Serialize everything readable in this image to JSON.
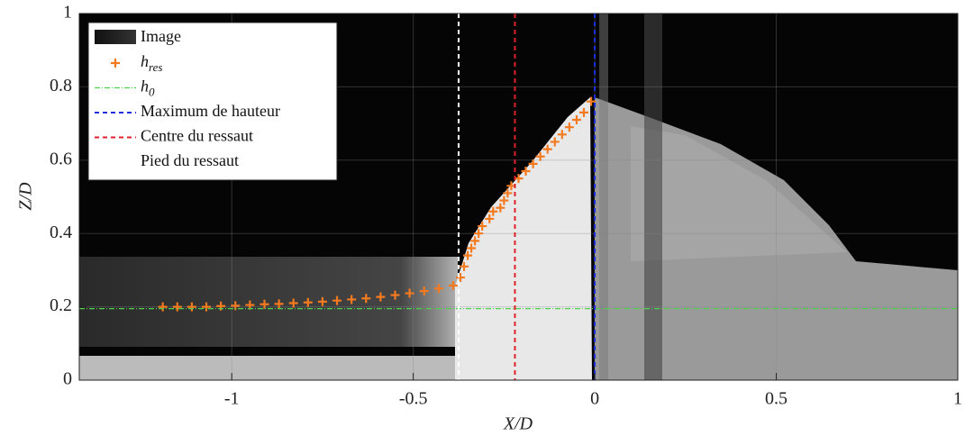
{
  "chart_data": {
    "type": "scatter",
    "xlabel": "X/D",
    "ylabel": "Z/D",
    "xlim": [
      -1.42,
      1
    ],
    "ylim": [
      0,
      1
    ],
    "xticks": [
      -1,
      -0.5,
      0,
      0.5,
      1
    ],
    "yticks": [
      0,
      0.2,
      0.4,
      0.6,
      0.8,
      1
    ],
    "grid": true,
    "legend": "upper left",
    "image_legend": "Image",
    "series": [
      {
        "name": "h",
        "subscript": "res",
        "kind": "points",
        "color": "#f47a20",
        "x": [
          -1.19,
          -1.15,
          -1.11,
          -1.07,
          -1.03,
          -0.99,
          -0.95,
          -0.91,
          -0.87,
          -0.83,
          -0.79,
          -0.75,
          -0.71,
          -0.67,
          -0.63,
          -0.59,
          -0.55,
          -0.51,
          -0.47,
          -0.43,
          -0.39,
          -0.37,
          -0.36,
          -0.35,
          -0.34,
          -0.33,
          -0.32,
          -0.31,
          -0.29,
          -0.28,
          -0.26,
          -0.25,
          -0.24,
          -0.23,
          -0.21,
          -0.19,
          -0.17,
          -0.15,
          -0.13,
          -0.11,
          -0.09,
          -0.07,
          -0.05,
          -0.03,
          -0.01
        ],
        "values": [
          0.2,
          0.2,
          0.2,
          0.2,
          0.202,
          0.203,
          0.205,
          0.207,
          0.208,
          0.21,
          0.212,
          0.214,
          0.217,
          0.22,
          0.223,
          0.227,
          0.232,
          0.237,
          0.243,
          0.25,
          0.258,
          0.28,
          0.31,
          0.34,
          0.36,
          0.38,
          0.4,
          0.42,
          0.44,
          0.46,
          0.47,
          0.49,
          0.51,
          0.53,
          0.55,
          0.57,
          0.59,
          0.61,
          0.63,
          0.65,
          0.67,
          0.69,
          0.71,
          0.73,
          0.76
        ]
      },
      {
        "name": "h",
        "subscript": "0",
        "kind": "hline",
        "color": "#4fd14f",
        "value": 0.195
      },
      {
        "name": "Maximum de hauteur",
        "kind": "vline",
        "color": "#1f2fe0",
        "value": 0
      },
      {
        "name": "Centre du ressaut",
        "kind": "vline",
        "color": "#e0202a",
        "value": -0.22
      },
      {
        "name": "Pied du ressaut",
        "kind": "vline",
        "color": "#ffffff",
        "value": -0.375
      }
    ]
  }
}
